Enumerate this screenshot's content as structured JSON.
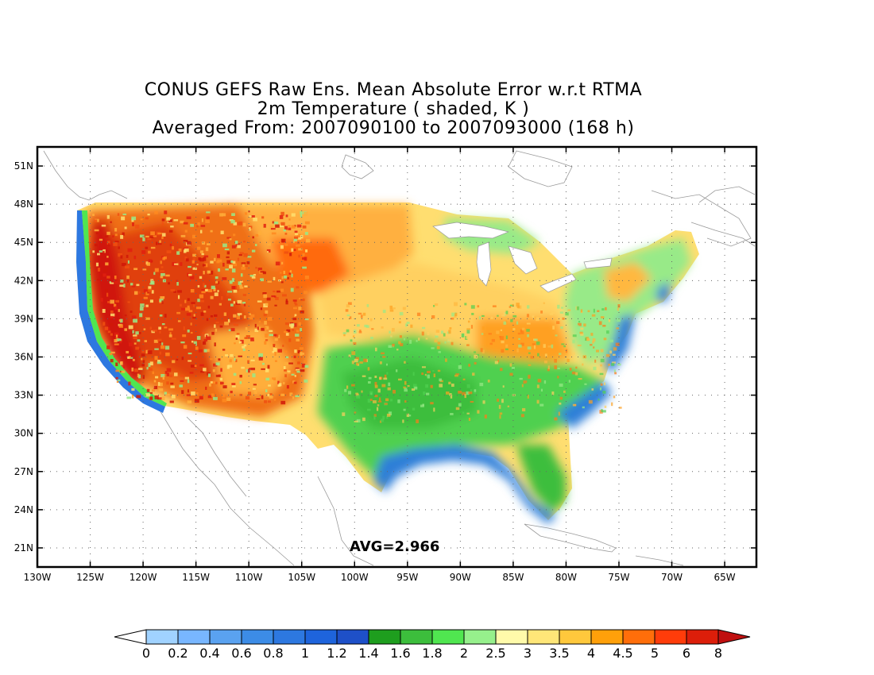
{
  "title": {
    "line1": "CONUS GEFS Raw Ens. Mean Absolute Error w.r.t RTMA",
    "line2": "2m Temperature ( shaded, K )",
    "line3": "Averaged From: 2007090100 to 2007093000 (168 h)"
  },
  "avg_label": "AVG=2.966",
  "map": {
    "lon_range": [
      -130,
      -62
    ],
    "lat_range": [
      19.5,
      52.5
    ],
    "grid": "dotted",
    "lat_ticks": [
      {
        "lat": 21,
        "label": "21N"
      },
      {
        "lat": 24,
        "label": "24N"
      },
      {
        "lat": 27,
        "label": "27N"
      },
      {
        "lat": 30,
        "label": "30N"
      },
      {
        "lat": 33,
        "label": "33N"
      },
      {
        "lat": 36,
        "label": "36N"
      },
      {
        "lat": 39,
        "label": "39N"
      },
      {
        "lat": 42,
        "label": "42N"
      },
      {
        "lat": 45,
        "label": "45N"
      },
      {
        "lat": 48,
        "label": "48N"
      },
      {
        "lat": 51,
        "label": "51N"
      }
    ],
    "lon_ticks": [
      {
        "lon": -130,
        "label": "130W"
      },
      {
        "lon": -125,
        "label": "125W"
      },
      {
        "lon": -120,
        "label": "120W"
      },
      {
        "lon": -115,
        "label": "115W"
      },
      {
        "lon": -110,
        "label": "110W"
      },
      {
        "lon": -105,
        "label": "105W"
      },
      {
        "lon": -100,
        "label": "100W"
      },
      {
        "lon": -95,
        "label": "95W"
      },
      {
        "lon": -90,
        "label": "90W"
      },
      {
        "lon": -85,
        "label": "85W"
      },
      {
        "lon": -80,
        "label": "80W"
      },
      {
        "lon": -75,
        "label": "75W"
      },
      {
        "lon": -70,
        "label": "70W"
      },
      {
        "lon": -65,
        "label": "65W"
      }
    ],
    "colors": {
      "blue_coast": "#2f7fd8",
      "green": "#4fd04f",
      "light_green": "#98ea88",
      "pale_yellow": "#fff3a0",
      "yellow": "#ffde70",
      "orange_light": "#ffbe40",
      "orange": "#ff9a1a",
      "red_orange": "#ff6a10",
      "red": "#e02010"
    }
  },
  "colorbar": {
    "under_color": "#ffffff",
    "over_color": "#c01010",
    "colors": [
      "#a0d2ff",
      "#78b6ff",
      "#5aa2f0",
      "#3c8ce6",
      "#2d78e0",
      "#1e64dc",
      "#1e50c8",
      "#1e9e1e",
      "#3cbe3c",
      "#50e650",
      "#96f08c",
      "#fffaaa",
      "#ffe678",
      "#ffc83c",
      "#ffa00a",
      "#ff6e0a",
      "#ff3c0a",
      "#dc1e0a"
    ],
    "labels": [
      "0",
      "0.2",
      "0.4",
      "0.6",
      "0.8",
      "1",
      "1.2",
      "1.4",
      "1.6",
      "1.8",
      "2",
      "2.5",
      "3",
      "3.5",
      "4",
      "4.5",
      "5",
      "6",
      "8"
    ]
  }
}
